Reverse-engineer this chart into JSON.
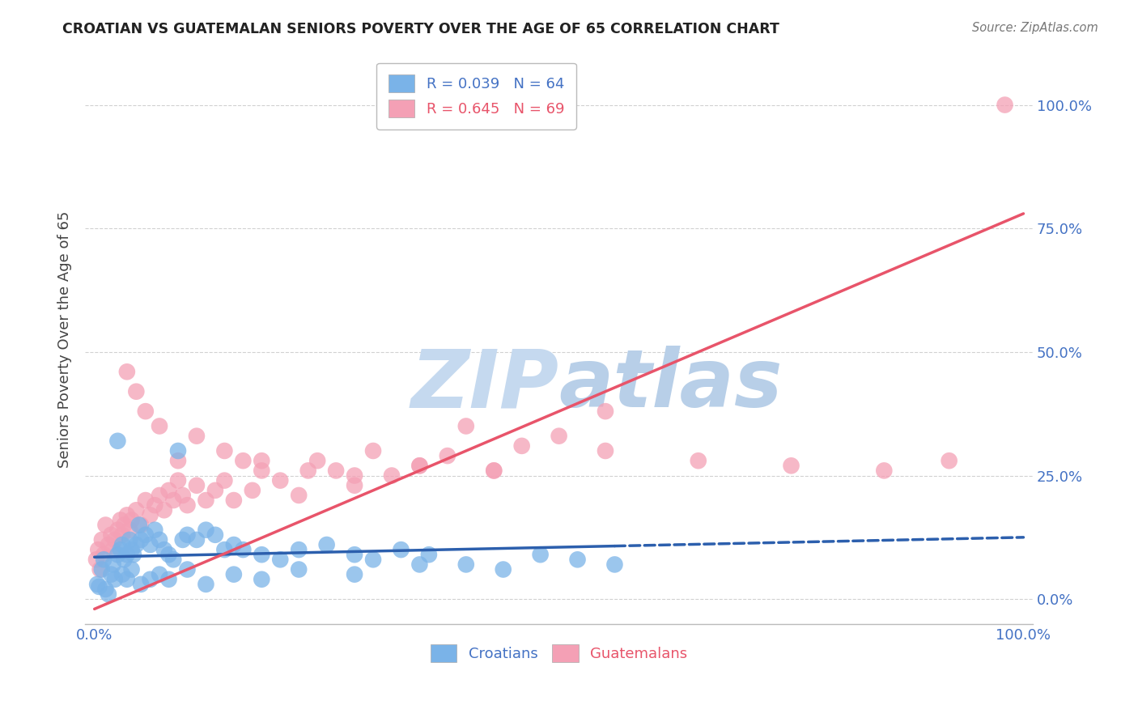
{
  "title": "CROATIAN VS GUATEMALAN SENIORS POVERTY OVER THE AGE OF 65 CORRELATION CHART",
  "source": "Source: ZipAtlas.com",
  "ylabel": "Seniors Poverty Over the Age of 65",
  "croatian_R": 0.039,
  "croatian_N": 64,
  "guatemalan_R": 0.645,
  "guatemalan_N": 69,
  "croatian_color": "#7ab3e8",
  "guatemalan_color": "#f4a0b5",
  "croatian_line_color": "#2c5fad",
  "guatemalan_line_color": "#e8546a",
  "watermark_text": "ZIPatlas",
  "watermark_color": "#c8d8f0",
  "background_color": "#ffffff",
  "grid_color": "#cccccc",
  "tick_label_color": "#4472c4",
  "title_color": "#222222",
  "source_color": "#777777",
  "croatian_x": [
    0.3,
    0.5,
    0.8,
    1.0,
    1.2,
    1.5,
    1.8,
    2.0,
    2.2,
    2.5,
    2.8,
    3.0,
    3.2,
    3.5,
    3.8,
    4.0,
    4.2,
    4.5,
    4.8,
    5.0,
    5.5,
    6.0,
    6.5,
    7.0,
    7.5,
    8.0,
    8.5,
    9.0,
    9.5,
    10.0,
    11.0,
    12.0,
    13.0,
    14.0,
    15.0,
    16.0,
    18.0,
    20.0,
    22.0,
    25.0,
    28.0,
    30.0,
    33.0,
    36.0,
    40.0,
    44.0,
    48.0,
    52.0,
    56.0,
    2.5,
    3.0,
    3.5,
    4.0,
    5.0,
    6.0,
    7.0,
    8.0,
    10.0,
    12.0,
    15.0,
    18.0,
    22.0,
    28.0,
    35.0
  ],
  "croatian_y": [
    3.0,
    2.5,
    6.0,
    8.0,
    2.0,
    1.0,
    5.0,
    7.0,
    4.0,
    9.0,
    10.0,
    11.0,
    8.0,
    9.0,
    12.0,
    10.0,
    9.0,
    11.0,
    15.0,
    12.0,
    13.0,
    11.0,
    14.0,
    12.0,
    10.0,
    9.0,
    8.0,
    30.0,
    12.0,
    13.0,
    12.0,
    14.0,
    13.0,
    10.0,
    11.0,
    10.0,
    9.0,
    8.0,
    10.0,
    11.0,
    9.0,
    8.0,
    10.0,
    9.0,
    7.0,
    6.0,
    9.0,
    8.0,
    7.0,
    32.0,
    5.0,
    4.0,
    6.0,
    3.0,
    4.0,
    5.0,
    4.0,
    6.0,
    3.0,
    5.0,
    4.0,
    6.0,
    5.0,
    7.0
  ],
  "guatemalan_x": [
    0.2,
    0.4,
    0.6,
    0.8,
    1.0,
    1.2,
    1.5,
    1.8,
    2.0,
    2.2,
    2.5,
    2.8,
    3.0,
    3.2,
    3.5,
    3.8,
    4.0,
    4.5,
    5.0,
    5.5,
    6.0,
    6.5,
    7.0,
    7.5,
    8.0,
    8.5,
    9.0,
    9.5,
    10.0,
    11.0,
    12.0,
    13.0,
    14.0,
    15.0,
    16.0,
    17.0,
    18.0,
    20.0,
    22.0,
    24.0,
    26.0,
    28.0,
    30.0,
    32.0,
    35.0,
    38.0,
    40.0,
    43.0,
    46.0,
    50.0,
    55.0,
    3.5,
    4.5,
    5.5,
    7.0,
    9.0,
    11.0,
    14.0,
    18.0,
    23.0,
    28.0,
    35.0,
    43.0,
    55.0,
    65.0,
    75.0,
    85.0,
    92.0,
    98.0
  ],
  "guatemalan_y": [
    8.0,
    10.0,
    6.0,
    12.0,
    9.0,
    15.0,
    11.0,
    13.0,
    10.0,
    12.0,
    14.0,
    16.0,
    13.0,
    15.0,
    17.0,
    14.0,
    16.0,
    18.0,
    15.0,
    20.0,
    17.0,
    19.0,
    21.0,
    18.0,
    22.0,
    20.0,
    24.0,
    21.0,
    19.0,
    23.0,
    20.0,
    22.0,
    24.0,
    20.0,
    28.0,
    22.0,
    26.0,
    24.0,
    21.0,
    28.0,
    26.0,
    23.0,
    30.0,
    25.0,
    27.0,
    29.0,
    35.0,
    26.0,
    31.0,
    33.0,
    38.0,
    46.0,
    42.0,
    38.0,
    35.0,
    28.0,
    33.0,
    30.0,
    28.0,
    26.0,
    25.0,
    27.0,
    26.0,
    30.0,
    28.0,
    27.0,
    26.0,
    28.0,
    100.0
  ],
  "croatian_line_slope": 0.04,
  "croatian_line_intercept": 8.5,
  "guatemalan_line_slope": 0.8,
  "guatemalan_line_intercept": -2.0,
  "croatian_solid_end": 56.0,
  "xlim": [
    -1,
    101
  ],
  "ylim": [
    -5,
    110
  ],
  "yticks": [
    0,
    25,
    50,
    75,
    100
  ],
  "xticks": [
    0,
    100
  ]
}
